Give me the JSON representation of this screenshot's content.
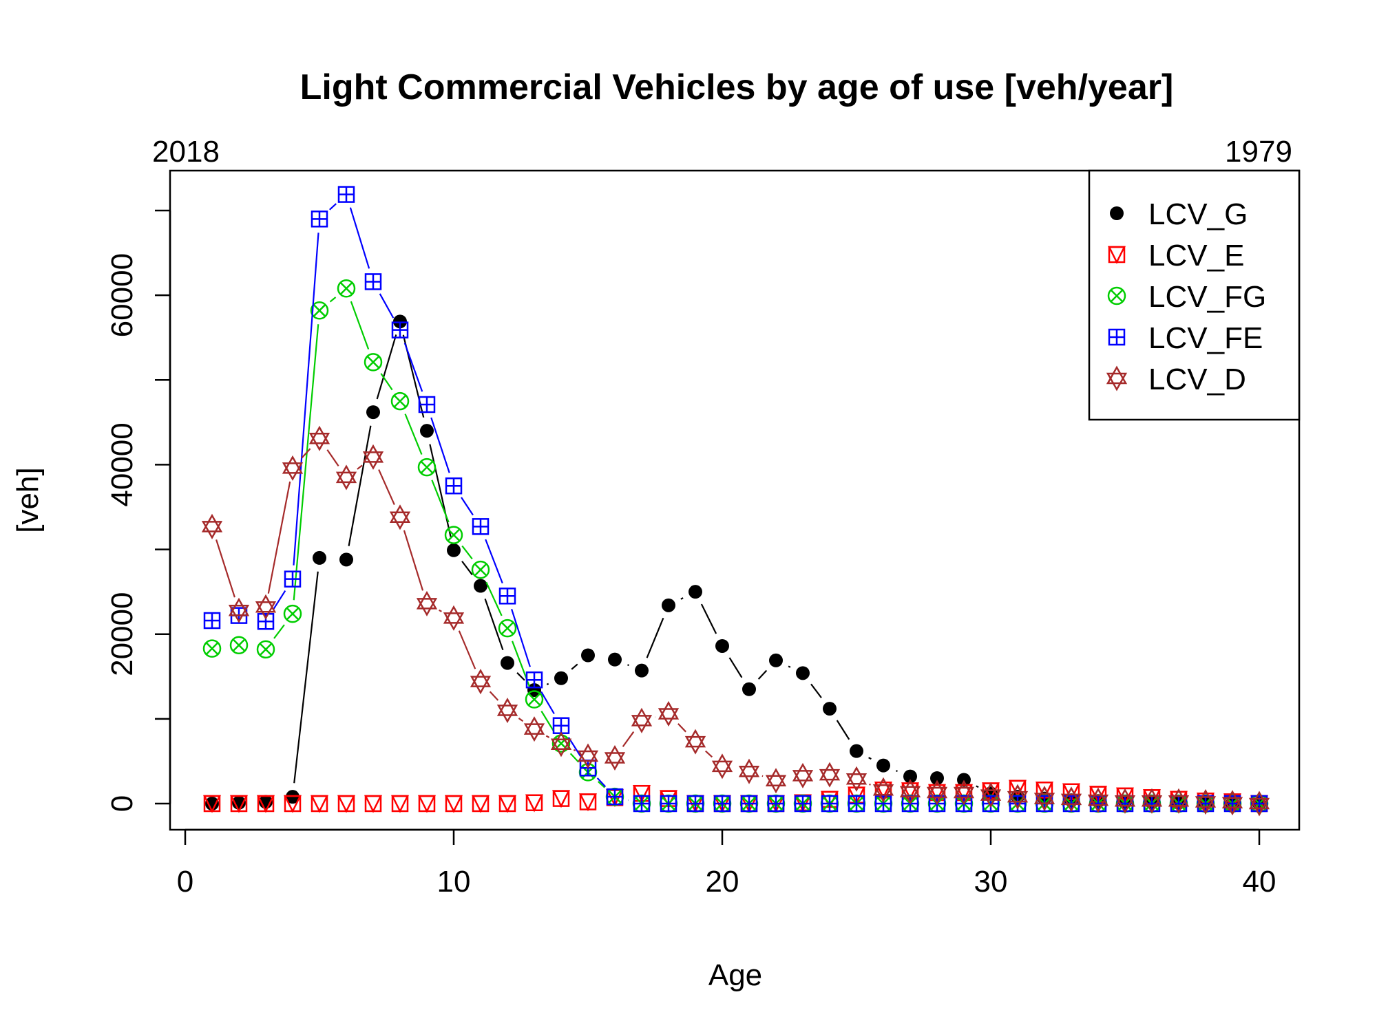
{
  "chart_data": {
    "type": "line",
    "title": "Light Commercial Vehicles by age of use [veh/year]",
    "xlabel": "Age",
    "ylabel": "[veh]",
    "top_left_label": "2018",
    "top_right_label": "1979",
    "xlim": [
      0,
      40
    ],
    "ylim": [
      0,
      70000
    ],
    "x_ticks": [
      0,
      10,
      20,
      30,
      40
    ],
    "y_ticks": [
      0,
      10000,
      20000,
      30000,
      40000,
      50000,
      60000,
      70000
    ],
    "y_tick_labels": [
      "0",
      "20000",
      "40000",
      "60000"
    ],
    "legend_position": "top-right",
    "grid": false,
    "x": [
      1,
      2,
      3,
      4,
      5,
      6,
      7,
      8,
      9,
      10,
      11,
      12,
      13,
      14,
      15,
      16,
      17,
      18,
      19,
      20,
      21,
      22,
      23,
      24,
      25,
      26,
      27,
      28,
      29,
      30,
      31,
      32,
      33,
      34,
      35,
      36,
      37,
      38,
      39,
      40
    ],
    "series": [
      {
        "name": "LCV_G",
        "color": "#000000",
        "marker": "filled-circle",
        "values": [
          0,
          100,
          200,
          800,
          29000,
          28800,
          46200,
          56900,
          44000,
          29900,
          25700,
          16600,
          13400,
          14800,
          17500,
          17000,
          15700,
          23400,
          25000,
          18600,
          13500,
          16900,
          15400,
          11200,
          6200,
          4500,
          3200,
          3000,
          2800,
          1200,
          800,
          600,
          400,
          300,
          200,
          150,
          100,
          50,
          30,
          0
        ]
      },
      {
        "name": "LCV_E",
        "color": "#ff0000",
        "marker": "triangle-in-square",
        "values": [
          0,
          0,
          0,
          0,
          0,
          0,
          0,
          0,
          0,
          0,
          0,
          0,
          100,
          600,
          200,
          700,
          1200,
          600,
          0,
          0,
          0,
          0,
          100,
          500,
          1000,
          1600,
          1500,
          1300,
          1300,
          1500,
          1800,
          1600,
          1400,
          1100,
          900,
          700,
          500,
          300,
          200,
          0
        ]
      },
      {
        "name": "LCV_FG",
        "color": "#00cd00",
        "marker": "circle-x",
        "values": [
          18300,
          18700,
          18200,
          22400,
          58200,
          60800,
          52100,
          47500,
          39700,
          31700,
          27600,
          20700,
          12300,
          7100,
          3700,
          800,
          0,
          0,
          0,
          0,
          0,
          0,
          0,
          0,
          0,
          0,
          0,
          0,
          0,
          0,
          0,
          0,
          0,
          0,
          0,
          0,
          0,
          0,
          0,
          0
        ]
      },
      {
        "name": "LCV_FE",
        "color": "#0000ff",
        "marker": "square-plus",
        "values": [
          21600,
          22200,
          21500,
          26500,
          69000,
          71900,
          61600,
          55900,
          47100,
          37500,
          32700,
          24500,
          14600,
          9200,
          4200,
          800,
          0,
          0,
          0,
          0,
          0,
          0,
          0,
          0,
          0,
          0,
          0,
          0,
          0,
          0,
          0,
          0,
          0,
          0,
          0,
          0,
          0,
          0,
          0,
          0
        ]
      },
      {
        "name": "LCV_D",
        "color": "#a52a2a",
        "marker": "star-of-david",
        "values": [
          32700,
          22800,
          23200,
          39600,
          43100,
          38500,
          40900,
          33800,
          23600,
          21900,
          14400,
          11000,
          8800,
          7000,
          5600,
          5400,
          9800,
          10600,
          7300,
          4400,
          3800,
          2700,
          3300,
          3400,
          2900,
          1600,
          1400,
          1300,
          1300,
          1000,
          800,
          600,
          500,
          400,
          300,
          300,
          300,
          200,
          100,
          0
        ]
      }
    ]
  }
}
